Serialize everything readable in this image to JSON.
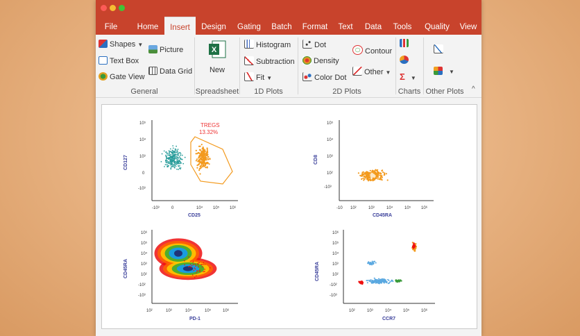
{
  "window": {
    "controls": [
      "close",
      "minimize",
      "maximize"
    ]
  },
  "tabs": [
    {
      "label": "File"
    },
    {
      "label": "Home"
    },
    {
      "label": "Insert",
      "active": true
    },
    {
      "label": "Design"
    },
    {
      "label": "Gating"
    },
    {
      "label": "Batch"
    },
    {
      "label": "Format"
    },
    {
      "label": "Text"
    },
    {
      "label": "Data"
    },
    {
      "label": "Tools"
    },
    {
      "label": "Quality"
    },
    {
      "label": "View"
    }
  ],
  "ribbon": {
    "general": {
      "shapes": "Shapes",
      "picture": "Picture",
      "text_box": "Text Box",
      "data_grid": "Data Grid",
      "gate_view": "Gate View",
      "label": "General"
    },
    "spreadsheet": {
      "new": "New",
      "label": "Spreadsheet"
    },
    "plots1d": {
      "histogram": "Histogram",
      "subtraction": "Subtraction",
      "fit": "Fit",
      "label": "1D Plots"
    },
    "plots2d": {
      "dot": "Dot",
      "density": "Density",
      "color_dot": "Color Dot",
      "contour": "Contour",
      "other": "Other",
      "label": "2D Plots"
    },
    "charts": {
      "label": "Charts"
    },
    "other_plots": {
      "label": "Other Plots"
    },
    "collapse_glyph": "^"
  },
  "colors": {
    "accent": "#c8432c",
    "teal": "#2a9d9b",
    "orange": "#f39a1e",
    "axis_label": "#3a3f9a"
  },
  "plots": {
    "p1": {
      "xlabel": "CD25",
      "ylabel": "CD127",
      "gate_name": "TREGS",
      "gate_pct": "13.32%",
      "xticks": [
        "-10³",
        "0",
        "10⁴",
        "10⁵",
        "10⁶"
      ],
      "yticks": [
        "10⁵",
        "10⁴",
        "10³",
        "0",
        "-10³"
      ]
    },
    "p2": {
      "xlabel": "CD45RA",
      "ylabel": "CD8",
      "xticks": [
        "-10",
        "10²",
        "10³",
        "10⁴",
        "10⁵",
        "10⁶"
      ],
      "yticks": [
        "10⁵",
        "10⁴",
        "10³",
        "10²",
        "-10³"
      ]
    },
    "p3": {
      "xlabel": "PD-1",
      "ylabel": "CD45RA",
      "xticks": [
        "10²",
        "10³",
        "10⁴",
        "10⁵",
        "10⁶"
      ],
      "yticks": [
        "10⁶",
        "10⁵",
        "10⁴",
        "10³",
        "10²",
        "-10²",
        "-10³"
      ]
    },
    "p4": {
      "xlabel": "CCR7",
      "ylabel": "CD45RA",
      "xticks": [
        "10²",
        "10³",
        "10⁴",
        "10⁵",
        "10⁶"
      ],
      "yticks": [
        "10⁶",
        "10⁵",
        "10⁴",
        "10³",
        "10²",
        "-10²",
        "-10³"
      ]
    }
  }
}
